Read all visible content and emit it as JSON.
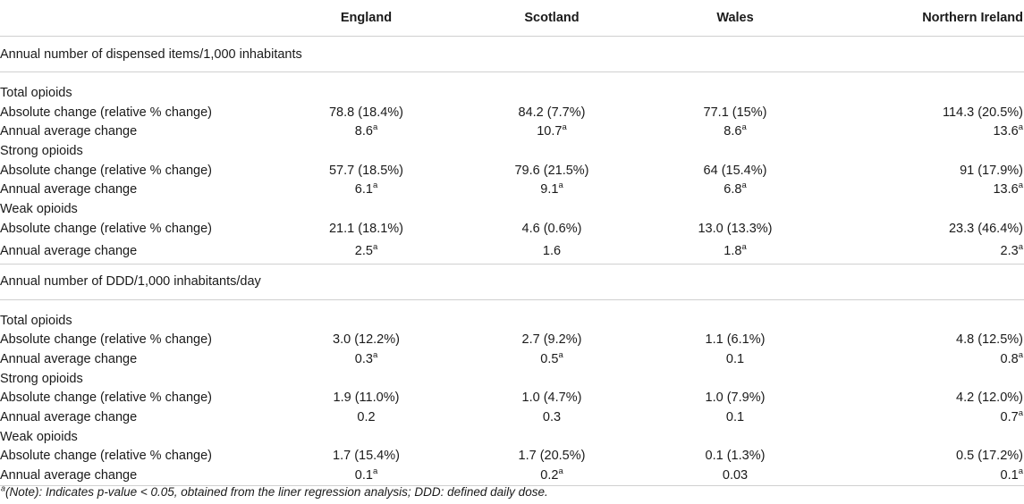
{
  "header": {
    "blank": "",
    "columns": [
      "England",
      "Scotland",
      "Wales",
      "Northern Ireland"
    ]
  },
  "sup_marker": "a",
  "sections": [
    {
      "title": "Annual number of dispensed items/1,000 inhabitants",
      "groups": [
        {
          "name": "Total opioids",
          "rows": [
            {
              "label": "Absolute change (relative % change)",
              "values": [
                "78.8 (18.4%)",
                "84.2 (7.7%)",
                "77.1 (15%)",
                "114.3 (20.5%)"
              ],
              "sup": [
                false,
                false,
                false,
                false
              ]
            },
            {
              "label": "Annual average change",
              "values": [
                "8.6",
                "10.7",
                "8.6",
                "13.6"
              ],
              "sup": [
                true,
                true,
                true,
                true
              ]
            }
          ]
        },
        {
          "name": "Strong opioids",
          "rows": [
            {
              "label": "Absolute change (relative % change)",
              "values": [
                "57.7 (18.5%)",
                "79.6 (21.5%)",
                "64 (15.4%)",
                "91 (17.9%)"
              ],
              "sup": [
                false,
                false,
                false,
                false
              ]
            },
            {
              "label": "Annual average change",
              "values": [
                "6.1",
                "9.1",
                "6.8",
                "13.6"
              ],
              "sup": [
                true,
                true,
                true,
                true
              ]
            }
          ]
        },
        {
          "name": "Weak opioids",
          "rows": [
            {
              "label": "Absolute change (relative % change)",
              "values": [
                "21.1 (18.1%)",
                "4.6 (0.6%)",
                "13.0 (13.3%)",
                "23.3 (46.4%)"
              ],
              "sup": [
                false,
                false,
                false,
                false
              ]
            },
            {
              "label": "Annual average change",
              "values": [
                "2.5",
                "1.6",
                "1.8",
                "2.3"
              ],
              "sup": [
                true,
                false,
                true,
                true
              ]
            }
          ]
        }
      ]
    },
    {
      "title": "Annual number of DDD/1,000 inhabitants/day",
      "groups": [
        {
          "name": "Total opioids",
          "rows": [
            {
              "label": "Absolute change (relative % change)",
              "values": [
                "3.0 (12.2%)",
                "2.7 (9.2%)",
                "1.1 (6.1%)",
                "4.8 (12.5%)"
              ],
              "sup": [
                false,
                false,
                false,
                false
              ]
            },
            {
              "label": "Annual average change",
              "values": [
                "0.3",
                "0.5",
                "0.1",
                "0.8"
              ],
              "sup": [
                true,
                true,
                false,
                true
              ]
            }
          ]
        },
        {
          "name": "Strong opioids",
          "rows": [
            {
              "label": "Absolute change (relative % change)",
              "values": [
                "1.9 (11.0%)",
                "1.0 (4.7%)",
                "1.0 (7.9%)",
                "4.2 (12.0%)"
              ],
              "sup": [
                false,
                false,
                false,
                false
              ]
            },
            {
              "label": "Annual average change",
              "values": [
                "0.2",
                "0.3",
                "0.1",
                "0.7"
              ],
              "sup": [
                false,
                false,
                false,
                true
              ]
            }
          ]
        },
        {
          "name": "Weak opioids",
          "rows": [
            {
              "label": "Absolute change (relative % change)",
              "values": [
                "1.7 (15.4%)",
                "1.7 (20.5%)",
                "0.1 (1.3%)",
                "0.5 (17.2%)"
              ],
              "sup": [
                false,
                false,
                false,
                false
              ]
            },
            {
              "label": "Annual average change",
              "values": [
                "0.1",
                "0.2",
                "0.03",
                "0.1"
              ],
              "sup": [
                true,
                true,
                false,
                true
              ]
            }
          ]
        }
      ]
    }
  ],
  "footnote": {
    "marker": "a",
    "text": "(Note): Indicates p-value < 0.05, obtained from the liner regression analysis; DDD: defined daily dose."
  }
}
